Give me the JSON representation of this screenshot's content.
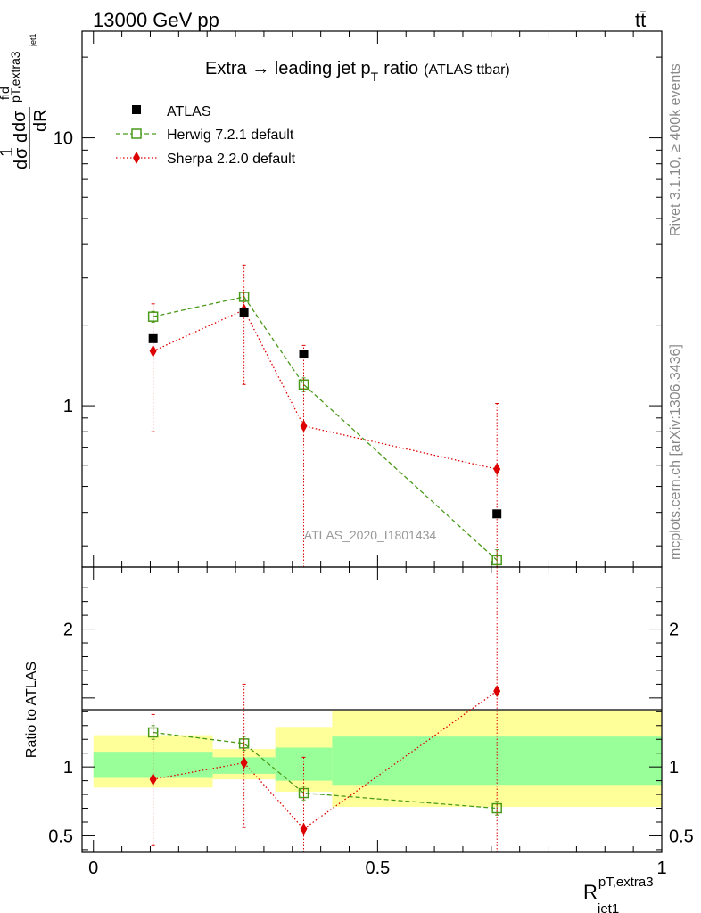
{
  "header": {
    "energy_label": "13000 GeV pp",
    "process_label": "tt̄"
  },
  "side": {
    "rivet_label": "Rivet 3.1.10, ≥ 400k events",
    "source_label": "mcplots.cern.ch [arXiv:1306.3436]"
  },
  "chart_data": [
    {
      "type": "line",
      "title": "Extra → leading jet pT ratio",
      "title_main": "Extra → leading jet p",
      "title_sub": "T",
      "title_tail": "ratio",
      "title_note": "(ATLAS ttbar)",
      "analysis_tag": "ATLAS_2020_I1801434",
      "ylabel": "1/σ dσ^fid_{p_T,extra3/jet1} / dR",
      "yscale": "log",
      "ylim": [
        0.25,
        25
      ],
      "yticks": [
        1,
        10
      ],
      "ytick_labels": [
        "1",
        "10"
      ],
      "xlim": [
        -0.02,
        1.0
      ],
      "legend_placement": "top-left",
      "bins": [
        [
          0.0,
          0.21
        ],
        [
          0.21,
          0.32
        ],
        [
          0.32,
          0.42
        ],
        [
          0.42,
          1.0
        ]
      ],
      "series": [
        {
          "name": "ATLAS",
          "marker": "square",
          "color": "#000000",
          "x": [
            0.105,
            0.265,
            0.37,
            0.71
          ],
          "y": [
            1.78,
            2.22,
            1.56,
            0.395
          ]
        },
        {
          "name": "Herwig 7.2.1 default",
          "marker": "open-square",
          "color": "#4a9a1a",
          "linestyle": "dashed",
          "x": [
            0.105,
            0.265,
            0.37,
            0.71
          ],
          "y": [
            2.15,
            2.55,
            1.2,
            0.265
          ],
          "err_lo": [
            2.05,
            2.45,
            1.13,
            0.24
          ],
          "err_hi": [
            2.25,
            2.65,
            1.27,
            0.29
          ]
        },
        {
          "name": "Sherpa 2.2.0 default",
          "marker": "diamond",
          "color": "#dd0000",
          "linestyle": "dotted",
          "x": [
            0.105,
            0.265,
            0.37,
            0.71
          ],
          "y": [
            1.6,
            2.28,
            0.84,
            0.58
          ],
          "err_lo": [
            0.8,
            1.2,
            0.01,
            0.01
          ],
          "err_hi": [
            2.4,
            3.35,
            1.68,
            1.02
          ]
        }
      ]
    },
    {
      "type": "line",
      "ylabel": "Ratio to ATLAS",
      "xlabel": "R^{pT,extra3}_{jet1}",
      "xlabel_main": "R",
      "xlabel_sup": "pT,extra3",
      "xlabel_sub": "jet1",
      "ylim": [
        0.38,
        2.45
      ],
      "yticks": [
        0.5,
        1,
        2
      ],
      "ytick_labels": [
        "0.5",
        "1",
        "2"
      ],
      "xlim": [
        -0.02,
        1.0
      ],
      "xticks": [
        0,
        0.5,
        1
      ],
      "xtick_labels": [
        "0",
        "0.5",
        "1"
      ],
      "bands": [
        {
          "x0": 0.0,
          "x1": 0.21,
          "yellow": [
            0.85,
            1.23
          ],
          "green": [
            0.92,
            1.11
          ]
        },
        {
          "x0": 0.21,
          "x1": 0.32,
          "yellow": [
            0.91,
            1.13
          ],
          "green": [
            0.95,
            1.07
          ]
        },
        {
          "x0": 0.32,
          "x1": 0.42,
          "yellow": [
            0.82,
            1.29
          ],
          "green": [
            0.9,
            1.14
          ]
        },
        {
          "x0": 0.42,
          "x1": 1.0,
          "yellow": [
            0.71,
            1.41
          ],
          "green": [
            0.87,
            1.22
          ]
        }
      ],
      "series": [
        {
          "name": "Herwig 7.2.1 default",
          "marker": "open-square",
          "color": "#4a9a1a",
          "linestyle": "dashed",
          "x": [
            0.105,
            0.265,
            0.37,
            0.71
          ],
          "y": [
            1.25,
            1.17,
            0.81,
            0.7
          ],
          "err_lo": [
            1.2,
            1.12,
            0.76,
            0.65
          ],
          "err_hi": [
            1.3,
            1.22,
            0.86,
            0.75
          ]
        },
        {
          "name": "Sherpa 2.2.0 default",
          "marker": "diamond",
          "color": "#dd0000",
          "linestyle": "dotted",
          "x": [
            0.105,
            0.265,
            0.37,
            0.71
          ],
          "y": [
            0.91,
            1.03,
            0.55,
            1.55
          ],
          "err_lo": [
            0.43,
            0.56,
            0.01,
            0.01
          ],
          "err_hi": [
            1.38,
            1.6,
            1.07,
            2.6
          ]
        }
      ]
    }
  ]
}
